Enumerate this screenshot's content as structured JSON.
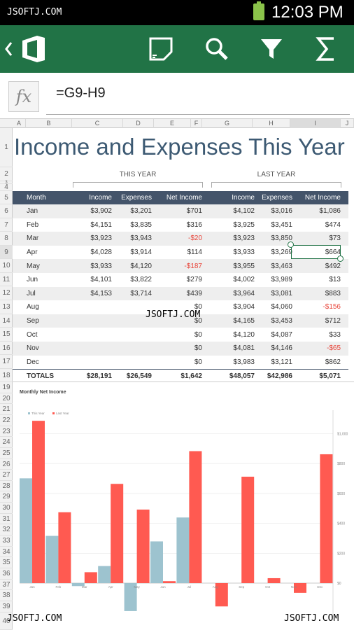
{
  "status": {
    "watermark": "JSOFTJ.COM",
    "time": "12:03 PM"
  },
  "appbar": {
    "icons": [
      "back-icon",
      "office-logo-icon",
      "touch-mode-icon",
      "search-icon",
      "filter-icon",
      "sum-icon"
    ]
  },
  "formula": {
    "fx": "fx",
    "value": "=G9-H9"
  },
  "columns": [
    "A",
    "B",
    "C",
    "D",
    "E",
    "F",
    "G",
    "H",
    "I",
    "J"
  ],
  "selected_column": "I",
  "rows": [
    "1",
    "2",
    "3",
    "4",
    "5",
    "6",
    "7",
    "8",
    "9",
    "10",
    "11",
    "12",
    "13",
    "14",
    "15",
    "16",
    "17",
    "18",
    "19",
    "20",
    "21",
    "22",
    "23",
    "24",
    "25",
    "26",
    "27",
    "28",
    "29",
    "30",
    "31",
    "32",
    "33",
    "34",
    "35",
    "36",
    "37",
    "38",
    "39",
    "40"
  ],
  "selected_row": "9",
  "sheet": {
    "title": "Income and Expenses This Year",
    "this_year": "THIS YEAR",
    "last_year": "LAST YEAR",
    "headers": [
      "Month",
      "Income",
      "Expenses",
      "Net Income",
      "Income",
      "Expenses",
      "Net Income"
    ],
    "data": [
      [
        "Jan",
        "$3,902",
        "$3,201",
        "$701",
        "$4,102",
        "$3,016",
        "$1,086"
      ],
      [
        "Feb",
        "$4,151",
        "$3,835",
        "$316",
        "$3,925",
        "$3,451",
        "$474"
      ],
      [
        "Mar",
        "$3,923",
        "$3,943",
        "-$20",
        "$3,923",
        "$3,850",
        "$73"
      ],
      [
        "Apr",
        "$4,028",
        "$3,914",
        "$114",
        "$3,933",
        "$3,269",
        "$664"
      ],
      [
        "May",
        "$3,933",
        "$4,120",
        "-$187",
        "$3,955",
        "$3,463",
        "$492"
      ],
      [
        "Jun",
        "$4,101",
        "$3,822",
        "$279",
        "$4,002",
        "$3,989",
        "$13"
      ],
      [
        "Jul",
        "$4,153",
        "$3,714",
        "$439",
        "$3,964",
        "$3,081",
        "$883"
      ],
      [
        "Aug",
        "",
        "",
        "$0",
        "$3,904",
        "$4,060",
        "-$156"
      ],
      [
        "Sep",
        "",
        "",
        "$0",
        "$4,165",
        "$3,453",
        "$712"
      ],
      [
        "Oct",
        "",
        "",
        "$0",
        "$4,120",
        "$4,087",
        "$33"
      ],
      [
        "Nov",
        "",
        "",
        "$0",
        "$4,081",
        "$4,146",
        "-$65"
      ],
      [
        "Dec",
        "",
        "",
        "$0",
        "$3,983",
        "$3,121",
        "$862"
      ]
    ],
    "totals": [
      "TOTALS",
      "$28,191",
      "$26,549",
      "$1,642",
      "$48,057",
      "$42,986",
      "$5,071"
    ]
  },
  "watermarks": {
    "center": "JSOFTJ.COM",
    "left": "JSOFTJ.COM",
    "right": "JSOFTJ.COM"
  },
  "colors": {
    "green": "#217346",
    "header_blue": "#44546a",
    "this_year": "#9dc3cf",
    "last_year": "#ff5a51",
    "negative": "#e8473c"
  },
  "chart_data": {
    "type": "bar",
    "title": "Monthly Net Income",
    "categories": [
      "Jan",
      "Feb",
      "Mar",
      "Apr",
      "May",
      "Jun",
      "Jul",
      "Aug",
      "Sep",
      "Oct",
      "Nov",
      "Dec"
    ],
    "series": [
      {
        "name": "This Year",
        "values": [
          701,
          316,
          -20,
          114,
          -187,
          279,
          439,
          0,
          0,
          0,
          0,
          0
        ]
      },
      {
        "name": "Last Year",
        "values": [
          1086,
          474,
          73,
          664,
          492,
          13,
          883,
          -156,
          712,
          33,
          -65,
          862
        ]
      }
    ],
    "y_ticks": [
      "$1,000",
      "$800",
      "$600",
      "$400",
      "$200",
      "$0"
    ],
    "ylim": [
      -200,
      1100
    ],
    "legend": "top-left",
    "grid": true
  }
}
